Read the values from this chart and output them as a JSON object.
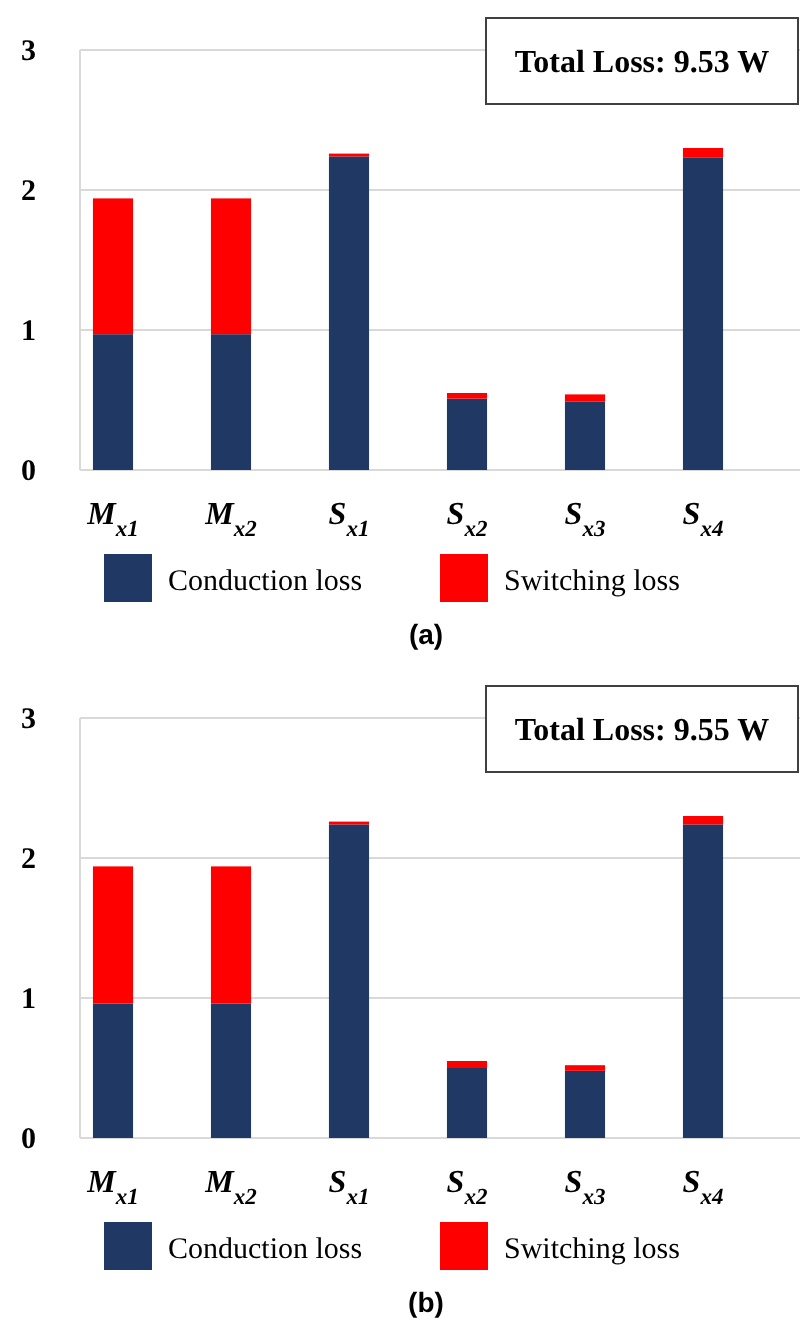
{
  "chart_data": [
    {
      "type": "bar",
      "title": "(a)",
      "stacked": true,
      "grid": "y",
      "legend": "bottom",
      "categories": [
        "M$_{x1}$",
        "M$_{x2}$",
        "S$_{x1}$",
        "S$_{x2}$",
        "S$_{x3}$",
        "S$_{x4}$"
      ],
      "series": [
        {
          "name": "Conduction loss",
          "color": "#203864",
          "values": [
            0.97,
            0.97,
            2.24,
            0.51,
            0.49,
            2.23
          ]
        },
        {
          "name": "Switching loss",
          "color": "#ff0000",
          "values": [
            0.97,
            0.97,
            0.02,
            0.04,
            0.05,
            0.07
          ]
        }
      ],
      "ylim": [
        0,
        3
      ],
      "yticks": [
        0,
        1,
        2,
        3
      ],
      "annotations": [
        "Total Loss: 9.53 W"
      ]
    },
    {
      "type": "bar",
      "title": "(b)",
      "stacked": true,
      "grid": "y",
      "legend": "bottom",
      "categories": [
        "M$_{x1}$",
        "M$_{x2}$",
        "S$_{x1}$",
        "S$_{x2}$",
        "S$_{x3}$",
        "S$_{x4}$"
      ],
      "series": [
        {
          "name": "Conduction loss",
          "color": "#203864",
          "values": [
            0.96,
            0.96,
            2.24,
            0.5,
            0.48,
            2.24
          ]
        },
        {
          "name": "Switching loss",
          "color": "#ff0000",
          "values": [
            0.98,
            0.98,
            0.02,
            0.05,
            0.04,
            0.06
          ]
        }
      ],
      "ylim": [
        0,
        3
      ],
      "yticks": [
        0,
        1,
        2,
        3
      ],
      "annotations": [
        "Total Loss: 9.55 W"
      ]
    }
  ]
}
